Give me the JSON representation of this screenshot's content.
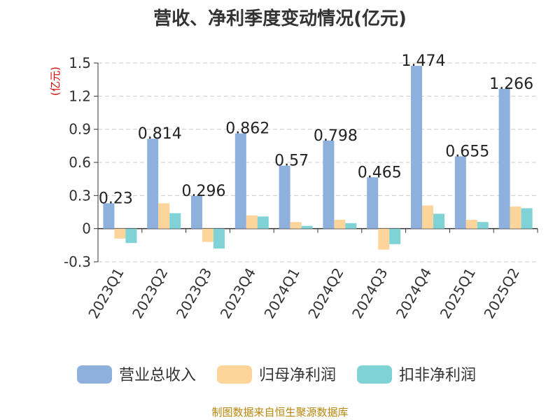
{
  "chart_data": {
    "type": "bar",
    "title": "营收、净利季度变动情况(亿元)",
    "ylabel": "(亿元)",
    "ylim": [
      -0.3,
      1.5
    ],
    "yticks": [
      -0.3,
      0,
      0.3,
      0.6,
      0.9,
      1.2,
      1.5
    ],
    "ytick_labels": [
      "-0.3",
      "0",
      "0.3",
      "0.6",
      "0.9",
      "1.2",
      "1.5"
    ],
    "grid": true,
    "legend_position": "bottom",
    "categories": [
      "2023Q1",
      "2023Q2",
      "2023Q3",
      "2023Q4",
      "2024Q1",
      "2024Q2",
      "2024Q3",
      "2024Q4",
      "2025Q1",
      "2025Q2"
    ],
    "series": [
      {
        "name": "营业总收入",
        "color": "#8eb0dc",
        "values": [
          0.23,
          0.814,
          0.296,
          0.862,
          0.57,
          0.798,
          0.465,
          1.474,
          0.655,
          1.266
        ],
        "labels": [
          "0.23",
          "0.814",
          "0.296",
          "0.862",
          "0.57",
          "0.798",
          "0.465",
          "1.474",
          "0.655",
          "1.266"
        ]
      },
      {
        "name": "归母净利润",
        "color": "#fdd59a",
        "values": [
          -0.09,
          0.23,
          -0.12,
          0.12,
          0.06,
          0.08,
          -0.19,
          0.21,
          0.08,
          0.2
        ]
      },
      {
        "name": "扣非净利润",
        "color": "#7fd3d7",
        "values": [
          -0.13,
          0.14,
          -0.18,
          0.11,
          0.025,
          0.05,
          -0.14,
          0.135,
          0.06,
          0.185
        ]
      }
    ]
  },
  "source_text": "制图数据来自恒生聚源数据库"
}
